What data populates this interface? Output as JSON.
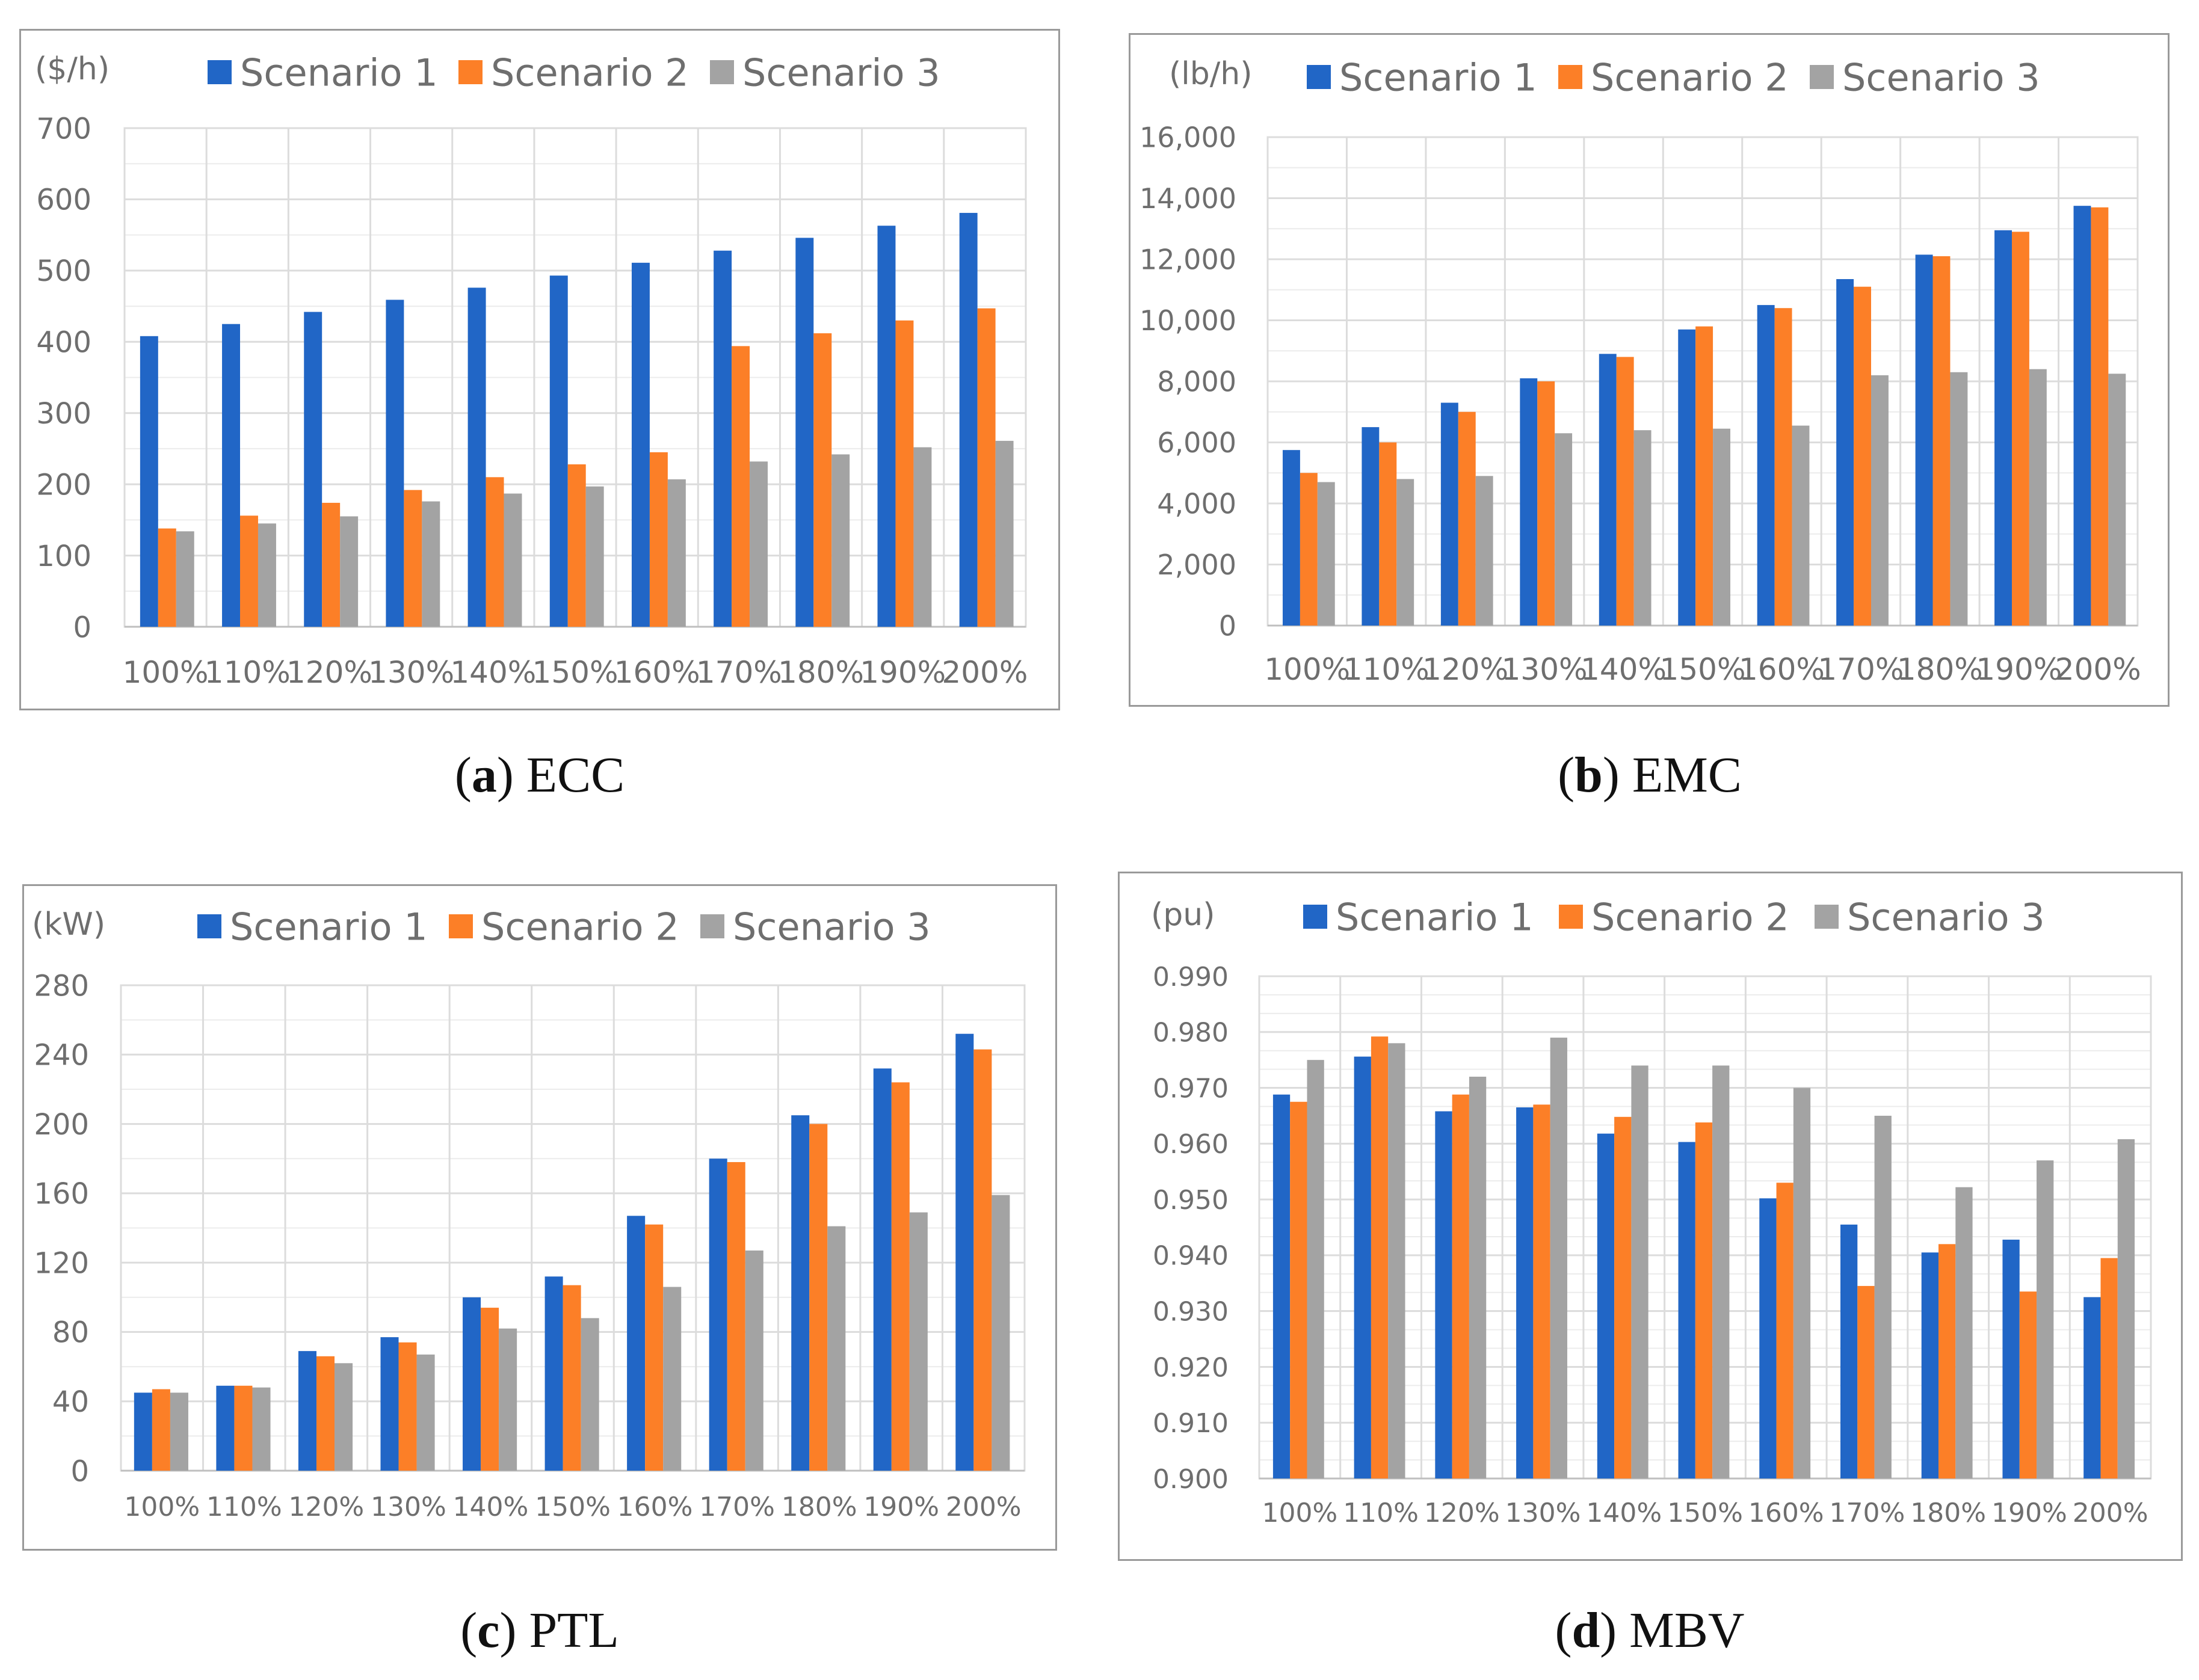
{
  "colors": {
    "scenario1": "#2166C6",
    "scenario2": "#FC7F27",
    "scenario3": "#A3A3A3",
    "grid": "#dcdcdc",
    "axis": "#bfbfbf",
    "frame": "#9a9a9a"
  },
  "panels": [
    {
      "id": "a",
      "caption_letter": "a",
      "caption_text": "ECC"
    },
    {
      "id": "b",
      "caption_letter": "b",
      "caption_text": "EMC"
    },
    {
      "id": "c",
      "caption_letter": "c",
      "caption_text": "PTL"
    },
    {
      "id": "d",
      "caption_letter": "d",
      "caption_text": "MBV"
    }
  ],
  "chart_data": [
    {
      "id": "a",
      "type": "bar",
      "title": "ECC",
      "ylabel": "($/h)",
      "legend": [
        "Scenario 1",
        "Scenario 2",
        "Scenario 3"
      ],
      "categories": [
        "100%",
        "110%",
        "120%",
        "130%",
        "140%",
        "150%",
        "160%",
        "170%",
        "180%",
        "190%",
        "200%"
      ],
      "ylim": [
        0,
        700
      ],
      "yticks": [
        "0",
        "100",
        "200",
        "300",
        "400",
        "500",
        "600",
        "700"
      ],
      "series": [
        {
          "name": "Scenario 1",
          "values": [
            408,
            425,
            442,
            459,
            476,
            493,
            511,
            528,
            546,
            563,
            581
          ]
        },
        {
          "name": "Scenario 2",
          "values": [
            138,
            156,
            174,
            192,
            210,
            228,
            245,
            394,
            412,
            430,
            447
          ]
        },
        {
          "name": "Scenario 3",
          "values": [
            134,
            145,
            155,
            176,
            187,
            197,
            207,
            232,
            242,
            252,
            261
          ]
        }
      ]
    },
    {
      "id": "b",
      "type": "bar",
      "title": "EMC",
      "ylabel": "(lb/h)",
      "legend": [
        "Scenario 1",
        "Scenario 2",
        "Scenario 3"
      ],
      "categories": [
        "100%",
        "110%",
        "120%",
        "130%",
        "140%",
        "150%",
        "160%",
        "170%",
        "180%",
        "190%",
        "200%"
      ],
      "ylim": [
        0,
        16000
      ],
      "yticks": [
        "0",
        "2,000",
        "4,000",
        "6,000",
        "8,000",
        "10,000",
        "12,000",
        "14,000",
        "16,000"
      ],
      "series": [
        {
          "name": "Scenario 1",
          "values": [
            5750,
            6500,
            7300,
            8100,
            8900,
            9700,
            10500,
            11350,
            12150,
            12950,
            13750
          ]
        },
        {
          "name": "Scenario 2",
          "values": [
            5000,
            6000,
            7000,
            8000,
            8800,
            9800,
            10400,
            11100,
            12100,
            12900,
            13700
          ]
        },
        {
          "name": "Scenario 3",
          "values": [
            4700,
            4800,
            4900,
            6300,
            6400,
            6450,
            6550,
            8200,
            8300,
            8400,
            8250
          ]
        }
      ]
    },
    {
      "id": "c",
      "type": "bar",
      "title": "PTL",
      "ylabel": "(kW)",
      "legend": [
        "Scenario 1",
        "Scenario 2",
        "Scenario 3"
      ],
      "categories": [
        "100%",
        "110%",
        "120%",
        "130%",
        "140%",
        "150%",
        "160%",
        "170%",
        "180%",
        "190%",
        "200%"
      ],
      "ylim": [
        0,
        280
      ],
      "yticks": [
        "0",
        "40",
        "80",
        "120",
        "160",
        "200",
        "240",
        "280"
      ],
      "series": [
        {
          "name": "Scenario 1",
          "values": [
            45,
            49,
            69,
            77,
            100,
            112,
            147,
            180,
            205,
            232,
            252
          ]
        },
        {
          "name": "Scenario 2",
          "values": [
            47,
            49,
            66,
            74,
            94,
            107,
            142,
            178,
            200,
            224,
            243
          ]
        },
        {
          "name": "Scenario 3",
          "values": [
            45,
            48,
            62,
            67,
            82,
            88,
            106,
            127,
            141,
            149,
            159
          ]
        }
      ]
    },
    {
      "id": "d",
      "type": "bar",
      "title": "MBV",
      "ylabel": "(pu)",
      "legend": [
        "Scenario 1",
        "Scenario 2",
        "Scenario 3"
      ],
      "categories": [
        "100%",
        "110%",
        "120%",
        "130%",
        "140%",
        "150%",
        "160%",
        "170%",
        "180%",
        "190%",
        "200%"
      ],
      "ylim": [
        0.9,
        0.99
      ],
      "yticks": [
        "0.900",
        "0.910",
        "0.920",
        "0.930",
        "0.940",
        "0.950",
        "0.960",
        "0.970",
        "0.980",
        "0.990"
      ],
      "series": [
        {
          "name": "Scenario 1",
          "values": [
            0.9688,
            0.9756,
            0.9658,
            0.9665,
            0.9618,
            0.9603,
            0.9502,
            0.9455,
            0.9405,
            0.9428,
            0.9325
          ]
        },
        {
          "name": "Scenario 2",
          "values": [
            0.9675,
            0.9792,
            0.9688,
            0.967,
            0.9648,
            0.9638,
            0.953,
            0.9345,
            0.942,
            0.9335,
            0.9395
          ]
        },
        {
          "name": "Scenario 3",
          "values": [
            0.975,
            0.978,
            0.972,
            0.979,
            0.974,
            0.974,
            0.97,
            0.965,
            0.9522,
            0.957,
            0.9608
          ]
        }
      ]
    }
  ]
}
